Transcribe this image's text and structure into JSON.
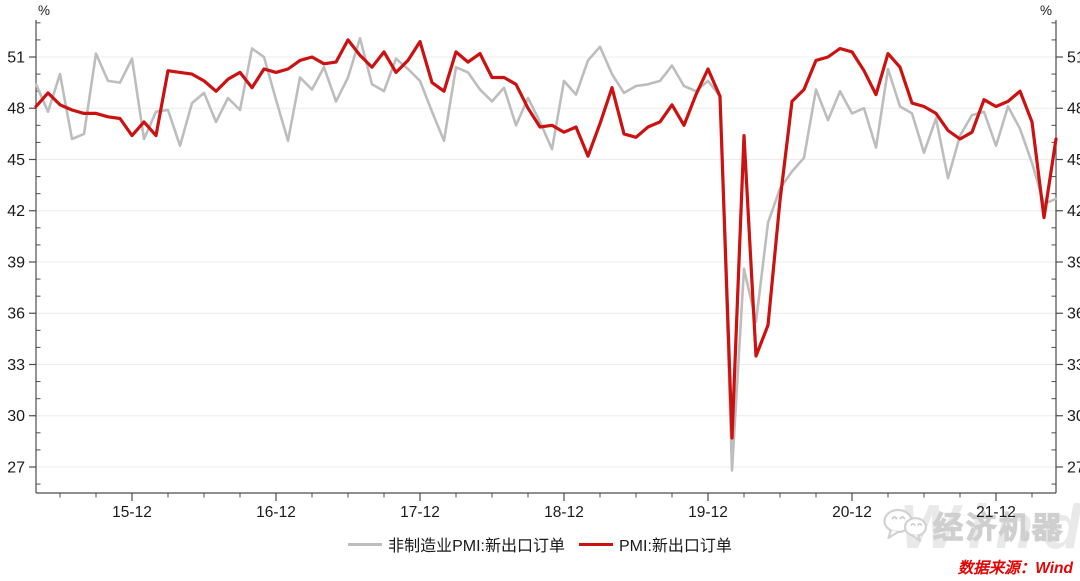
{
  "chart_data": {
    "type": "line",
    "title": "",
    "ylabel_left": "%",
    "ylabel_right": "%",
    "x_unit": "month",
    "x_start": "2015-04",
    "x_end": "2022-05",
    "x_tick_labels": [
      "15-12",
      "16-12",
      "17-12",
      "18-12",
      "19-12",
      "20-12",
      "21-12"
    ],
    "x_tick_month_indices": [
      8,
      20,
      32,
      44,
      56,
      68,
      80
    ],
    "x_minor_tick_every_months": 3,
    "y_ticks": [
      27,
      30,
      33,
      36,
      39,
      42,
      45,
      48,
      51
    ],
    "y_minor_step": 1,
    "ylim": [
      25.5,
      53.2
    ],
    "grid": "horizontal-major",
    "legend_position": "bottom-center",
    "axis_color": "#4d4d4d",
    "grid_color": "#ececec",
    "label_color": "#1a1a1a",
    "series": [
      {
        "name": "非制造业PMI:新出口订单",
        "color": "#bdbdbd",
        "width": 2.6,
        "values": [
          49.4,
          47.8,
          50.0,
          46.2,
          46.5,
          51.2,
          49.6,
          49.5,
          50.9,
          46.2,
          47.8,
          47.9,
          45.8,
          48.3,
          48.9,
          47.2,
          48.6,
          47.9,
          51.5,
          51.0,
          48.5,
          46.1,
          49.8,
          49.1,
          50.4,
          48.4,
          49.8,
          52.1,
          49.4,
          49.0,
          50.9,
          50.3,
          49.6,
          47.8,
          46.1,
          50.4,
          50.1,
          49.1,
          48.4,
          49.2,
          47.0,
          48.6,
          47.2,
          45.6,
          49.6,
          48.8,
          50.8,
          51.6,
          50.0,
          48.9,
          49.3,
          49.4,
          49.6,
          50.5,
          49.3,
          49.0,
          49.6,
          48.7,
          26.8,
          38.6,
          35.5,
          41.3,
          43.3,
          44.3,
          45.1,
          49.1,
          47.3,
          49.0,
          47.7,
          48.0,
          45.7,
          50.3,
          48.1,
          47.7,
          45.4,
          47.4,
          43.9,
          46.4,
          47.6,
          47.8,
          45.8,
          48.1,
          46.8,
          44.8,
          42.4,
          42.7
        ]
      },
      {
        "name": "PMI:新出口订单",
        "color": "#cc1111",
        "width": 3.2,
        "values": [
          48.1,
          48.9,
          48.2,
          47.9,
          47.7,
          47.7,
          47.5,
          47.4,
          46.4,
          47.2,
          46.4,
          50.2,
          50.1,
          50.0,
          49.6,
          49.0,
          49.7,
          50.1,
          49.2,
          50.3,
          50.1,
          50.3,
          50.8,
          51.0,
          50.6,
          50.7,
          52.0,
          51.1,
          50.4,
          51.3,
          50.1,
          50.8,
          51.9,
          49.5,
          49.0,
          51.3,
          50.7,
          51.2,
          49.8,
          49.8,
          49.4,
          48.0,
          46.9,
          47.0,
          46.6,
          46.9,
          45.2,
          47.1,
          49.2,
          46.5,
          46.3,
          46.9,
          47.2,
          48.2,
          47.0,
          48.8,
          50.3,
          48.7,
          28.7,
          46.4,
          33.5,
          35.3,
          42.6,
          48.4,
          49.1,
          50.8,
          51.0,
          51.5,
          51.3,
          50.2,
          48.8,
          51.2,
          50.4,
          48.3,
          48.1,
          47.7,
          46.7,
          46.2,
          46.6,
          48.5,
          48.1,
          48.4,
          49.0,
          47.2,
          41.6,
          46.2
        ]
      }
    ]
  },
  "footer": {
    "source": "数据来源：Wind",
    "brand": "经济机器",
    "watermark": "Wind"
  }
}
